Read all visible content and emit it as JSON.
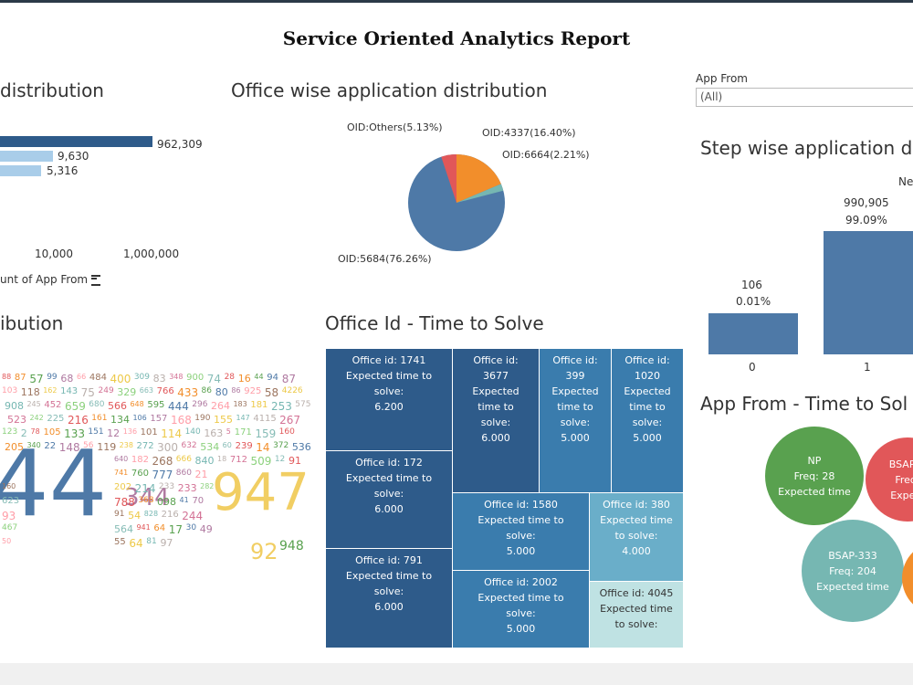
{
  "report_title": "Service Oriented Analytics Report",
  "sections": {
    "distribution_title": "distribution",
    "office_wise_title": "Office wise application distribution",
    "step_wise_title": "Step wise application d",
    "ibution_title": "ibution",
    "office_time_title": "Office Id - Time to Solve",
    "app_from_time_title": "App From - Time to Sol"
  },
  "filter": {
    "label": "App From",
    "value": "(All)"
  },
  "left_bar_chart": {
    "values": [
      "962,309",
      "9,630",
      "5,316"
    ],
    "axis_ticks": [
      "10,000",
      "1,000,000"
    ],
    "axis_label": "unt of App From"
  },
  "pie": {
    "labels": [
      "OID:Others(5.13%)",
      "OID:4337(16.40%)",
      "OID:6664(2.21%)",
      "OID:5684(76.26%)"
    ]
  },
  "step_chart": {
    "legend_partial": "Ne",
    "bars": [
      {
        "category": "0",
        "count": "106",
        "pct": "0.01%"
      },
      {
        "category": "1",
        "count": "990,905",
        "pct": "99.09%"
      }
    ]
  },
  "treemap": {
    "cells": [
      {
        "lines": [
          "Office id: 1741",
          "Expected time to",
          "solve:",
          "6.200"
        ]
      },
      {
        "lines": [
          "Office id:",
          "3677",
          "Expected",
          "time to",
          "solve:",
          "6.000"
        ]
      },
      {
        "lines": [
          "Office id:",
          "399",
          "Expected",
          "time to",
          "solve:",
          "5.000"
        ]
      },
      {
        "lines": [
          "Office id:",
          "1020",
          "Expected",
          "time to",
          "solve:",
          "5.000"
        ]
      },
      {
        "lines": [
          "Office id: 172",
          "Expected time to",
          "solve:",
          "6.000"
        ]
      },
      {
        "lines": [
          "Office id: 1580",
          "Expected time to",
          "solve:",
          "5.000"
        ]
      },
      {
        "lines": [
          "Office id: 380",
          "Expected time",
          "to solve:",
          "4.000"
        ]
      },
      {
        "lines": [
          "Office id: 791",
          "Expected time to",
          "solve:",
          "6.000"
        ]
      },
      {
        "lines": [
          "Office id: 2002",
          "Expected time to",
          "solve:",
          "5.000"
        ]
      },
      {
        "lines": [
          "Office id: 4045",
          "Expected time",
          "to solve:"
        ]
      }
    ]
  },
  "bubbles": [
    {
      "lines": [
        "NP",
        "Freq: 28",
        "Expected time"
      ]
    },
    {
      "lines": [
        "BSAP-U",
        "Freq:",
        "Expect"
      ]
    },
    {
      "lines": [
        "BSAP-333",
        "Freq: 204",
        "Expected time"
      ]
    }
  ],
  "word_cloud": {
    "big_left": "44",
    "big_mid": "344",
    "big_right": "947",
    "med1": "92",
    "med2": "948",
    "words": [
      "88",
      "87",
      "57",
      "99",
      "68",
      "66",
      "484",
      "400",
      "309",
      "83",
      "348",
      "900",
      "74",
      "28",
      "16",
      "44",
      "94",
      "87",
      "103",
      "118",
      "162",
      "143",
      "75",
      "249",
      "329",
      "663",
      "766",
      "433",
      "86",
      "80",
      "86",
      "925",
      "58",
      "4226",
      "908",
      "245",
      "452",
      "659",
      "680",
      "566",
      "648",
      "595",
      "444",
      "296",
      "264",
      "183",
      "181",
      "253",
      "575",
      "523",
      "242",
      "225",
      "216",
      "161",
      "134",
      "106",
      "157",
      "168",
      "190",
      "155",
      "147",
      "4115",
      "267",
      "123",
      "2",
      "78",
      "105",
      "133",
      "151",
      "12",
      "136",
      "101",
      "114",
      "140",
      "163",
      "5",
      "171",
      "159",
      "160",
      "205",
      "340",
      "22",
      "148",
      "56",
      "119",
      "238",
      "272",
      "300",
      "632",
      "534",
      "60",
      "239",
      "14",
      "372",
      "536",
      "640",
      "182",
      "268",
      "666",
      "840",
      "18",
      "712",
      "509",
      "12",
      "91",
      "741",
      "760",
      "777",
      "860",
      "21",
      "160",
      "202",
      "214",
      "233",
      "233",
      "282",
      "623",
      "788",
      "368",
      "098",
      "41",
      "70",
      "93",
      "91",
      "54",
      "828",
      "216",
      "244",
      "467",
      "564",
      "941",
      "64",
      "17",
      "30",
      "49",
      "50",
      "55",
      "64",
      "81",
      "97"
    ]
  },
  "colors": {
    "bar_dark": "#2e5b8a",
    "bar_light": "#a9cde9",
    "pie_blue": "#4e79a7",
    "pie_orange": "#f28e2b",
    "pie_red": "#e15759",
    "pie_teal": "#76b7b2",
    "step_bar": "#4e79a7",
    "bubble_green": "#59a14f",
    "bubble_red": "#e15759",
    "bubble_teal": "#76b7b2",
    "bubble_orange": "#f28e2b"
  }
}
